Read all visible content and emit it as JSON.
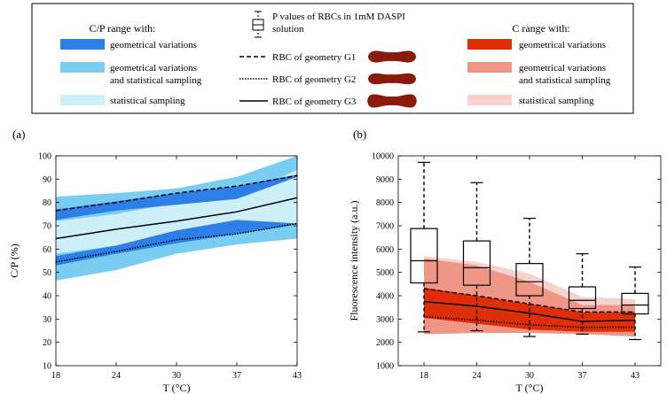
{
  "colors": {
    "cp_geom": "#2d7ee6",
    "cp_geom_stat": "#79cdf0",
    "cp_stat": "#cdeff8",
    "c_geom": "#dd2e08",
    "c_geom_stat": "#ef9686",
    "c_stat": "#f8d2cc",
    "rbc": "#8c1a0c"
  },
  "legend": {
    "cp_title": "C/P range with:",
    "cp_items": [
      "geometrical variations",
      "geometrical variations",
      "statistical sampling"
    ],
    "cp_item2_line2": "and statistical sampling",
    "p_values_line1": "P values of RBCs in 1mM DASPI",
    "p_values_line2": "solution",
    "rbc_g1": "RBC of geometry G1",
    "rbc_g2": "RBC of geometry G2",
    "rbc_g3": "RBC of geometry G3",
    "c_title": "C range with:",
    "c_items": [
      "geometrical variations",
      "geometrical variations",
      "statistical sampling"
    ],
    "c_item2_line2": "and statistical sampling"
  },
  "chart_data": [
    {
      "panel_label": "(a)",
      "type": "area",
      "xlabel": "T (°C)",
      "ylabel": "C/P (%)",
      "x": [
        18,
        24,
        30,
        37,
        43
      ],
      "ylim": [
        10,
        100
      ],
      "yticks": [
        10,
        20,
        30,
        40,
        50,
        60,
        70,
        80,
        90,
        100
      ],
      "bands": [
        {
          "name": "statistical sampling (outer)",
          "color_key": "cp_geom_stat",
          "upper": [
            82.5,
            84,
            86,
            91,
            100
          ],
          "lower": [
            46.5,
            51,
            58,
            62,
            64.5
          ]
        },
        {
          "name": "statistical sampling",
          "color_key": "cp_stat",
          "upper": [
            72,
            75,
            80,
            82,
            94
          ],
          "lower": [
            58,
            61.5,
            66,
            71,
            70
          ]
        },
        {
          "name": "geometrical variations (upper)",
          "color_key": "cp_geom",
          "upper": [
            77,
            80.5,
            84,
            87,
            92
          ],
          "lower": [
            72.5,
            76.5,
            79,
            81.5,
            91
          ]
        },
        {
          "name": "geometrical variations (lower)",
          "color_key": "cp_geom",
          "upper": [
            57,
            61.5,
            68,
            72.5,
            71
          ],
          "lower": [
            53,
            58,
            62.5,
            66.5,
            70.5
          ]
        }
      ],
      "series": [
        {
          "name": "RBC of geometry G1",
          "dash": "dashed",
          "values": [
            76.5,
            80,
            84,
            87,
            91.5
          ]
        },
        {
          "name": "RBC of geometry G2",
          "dash": "dotted",
          "values": [
            54.5,
            59,
            64,
            66.5,
            71
          ]
        },
        {
          "name": "RBC of geometry G3",
          "dash": "solid",
          "values": [
            64.5,
            68.5,
            72,
            76,
            82
          ]
        }
      ]
    },
    {
      "panel_label": "(b)",
      "type": "box+area",
      "xlabel": "T (°C)",
      "ylabel": "Fluorescence intensity (a.u.)",
      "x": [
        18,
        24,
        30,
        37,
        43
      ],
      "ylim": [
        1000,
        10000
      ],
      "yticks": [
        1000,
        2000,
        3000,
        4000,
        5000,
        6000,
        7000,
        8000,
        9000,
        10000
      ],
      "boxes": [
        {
          "x": 18,
          "whisker_low": 2450,
          "q1": 4550,
          "median": 5500,
          "q3": 6880,
          "whisker_high": 9720
        },
        {
          "x": 24,
          "whisker_low": 2500,
          "q1": 4450,
          "median": 5200,
          "q3": 6350,
          "whisker_high": 8850
        },
        {
          "x": 30,
          "whisker_low": 2250,
          "q1": 4000,
          "median": 4600,
          "q3": 5380,
          "whisker_high": 7320
        },
        {
          "x": 37,
          "whisker_low": 2350,
          "q1": 3450,
          "median": 3800,
          "q3": 4380,
          "whisker_high": 5800
        },
        {
          "x": 43,
          "whisker_low": 2120,
          "q1": 3220,
          "median": 3600,
          "q3": 4100,
          "whisker_high": 5230
        }
      ],
      "bands": [
        {
          "name": "statistical sampling",
          "color_key": "c_stat",
          "upper": [
            5700,
            5450,
            4950,
            3950,
            3850
          ],
          "lower": [
            4050,
            3850,
            3650,
            3350,
            3400
          ]
        },
        {
          "name": "geometrical variations and statistical sampling",
          "color_key": "c_geom_stat",
          "upper": [
            5600,
            5300,
            4600,
            3600,
            3600
          ],
          "lower": [
            2350,
            2400,
            2400,
            2350,
            2250
          ]
        },
        {
          "name": "geometrical variations",
          "color_key": "c_geom",
          "upper": [
            4350,
            4000,
            3650,
            3300,
            3300
          ],
          "lower": [
            3050,
            2800,
            2550,
            2450,
            2450
          ]
        }
      ],
      "series": [
        {
          "name": "RBC of geometry G1",
          "dash": "dashed",
          "values": [
            4300,
            4000,
            3650,
            3300,
            3300
          ]
        },
        {
          "name": "RBC of geometry G2",
          "dash": "dotted",
          "values": [
            3100,
            2950,
            2750,
            2650,
            2650
          ]
        },
        {
          "name": "RBC of geometry G3",
          "dash": "solid",
          "values": [
            3750,
            3550,
            3250,
            2900,
            2950
          ]
        }
      ]
    }
  ]
}
